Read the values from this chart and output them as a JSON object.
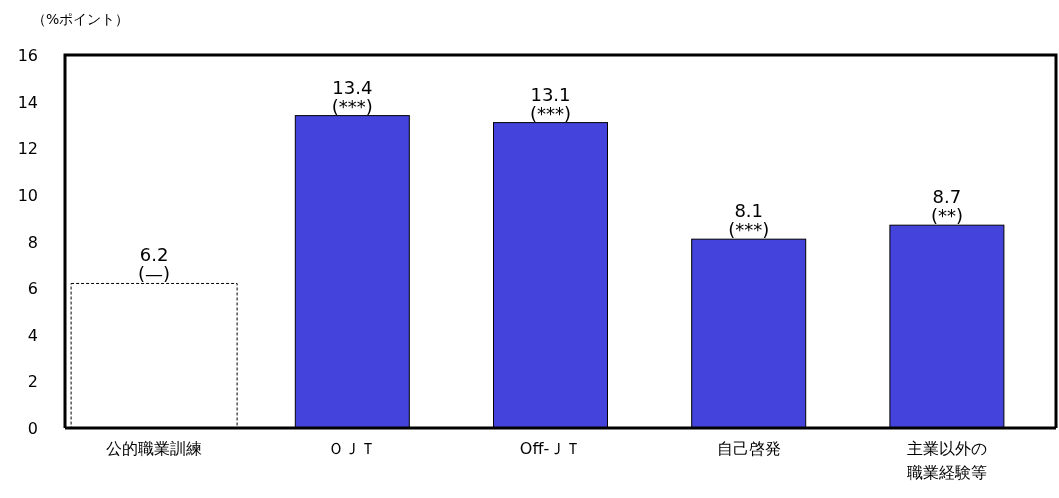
{
  "chart_data": {
    "type": "bar",
    "ylabel": "（%ポイント）",
    "categories": [
      "公的職業訓練",
      "ＯＪＴ",
      "Off-ＪＴ",
      "自己啓発",
      "主業以外の職業経験等"
    ],
    "values": [
      6.2,
      13.4,
      13.1,
      8.1,
      8.7
    ],
    "colors": [
      "#ffffff",
      "#4444dd",
      "#4444dd",
      "#4444dd",
      "#4444dd"
    ],
    "ylim": [
      0,
      16
    ],
    "yticks": [
      0,
      2,
      4,
      6,
      8,
      10,
      12,
      14,
      16
    ],
    "data_labels": true,
    "annotations": [
      {
        "text": "(—)",
        "x": "公的職業訓練",
        "y": 6.2
      },
      {
        "text": "(***)",
        "x": "ＯＪＴ",
        "y": 13.4
      },
      {
        "text": "(***)",
        "x": "Off-ＪＴ",
        "y": 13.1
      },
      {
        "text": "(***)",
        "x": "自己啓発",
        "y": 8.1
      },
      {
        "text": "(**)",
        "x": "主業以外の職業経験等",
        "y": 8.7
      }
    ]
  }
}
